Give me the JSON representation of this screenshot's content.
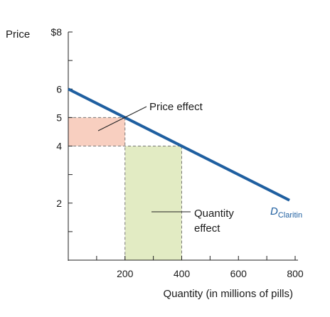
{
  "chart_data": {
    "type": "line",
    "title": "",
    "xlabel": "Quantity (in millions of pills)",
    "ylabel": "Price",
    "xlim": [
      0,
      800
    ],
    "ylim": [
      0,
      8
    ],
    "x_ticks": [
      100,
      200,
      300,
      400,
      500,
      600,
      700,
      800
    ],
    "x_tick_labels": [
      {
        "value": 200,
        "label": "200"
      },
      {
        "value": 400,
        "label": "400"
      },
      {
        "value": 600,
        "label": "600"
      },
      {
        "value": 800,
        "label": "800"
      }
    ],
    "y_ticks": [
      1,
      2,
      3,
      4,
      5,
      6,
      7,
      8
    ],
    "y_tick_labels": [
      {
        "value": 8,
        "label": "$8"
      },
      {
        "value": 6,
        "label": "6"
      },
      {
        "value": 5,
        "label": "5"
      },
      {
        "value": 4,
        "label": "4"
      },
      {
        "value": 2,
        "label": "2"
      }
    ],
    "grid": false,
    "series": [
      {
        "name_prefix": "D",
        "name_subscript": "Claritin",
        "color": "#1f5fa0",
        "x": [
          0,
          780
        ],
        "y": [
          6,
          2.1
        ]
      }
    ],
    "regions": [
      {
        "label": "Price effect",
        "x": [
          0,
          200
        ],
        "y": [
          4,
          5
        ],
        "color": "#f8cfc0"
      },
      {
        "label_lines": [
          "Quantity",
          "effect"
        ],
        "x": [
          200,
          400
        ],
        "y": [
          0,
          4
        ],
        "color": "#e2ebc3"
      }
    ],
    "reference_points": [
      {
        "x": 200,
        "y": 5
      },
      {
        "x": 400,
        "y": 4
      }
    ]
  }
}
